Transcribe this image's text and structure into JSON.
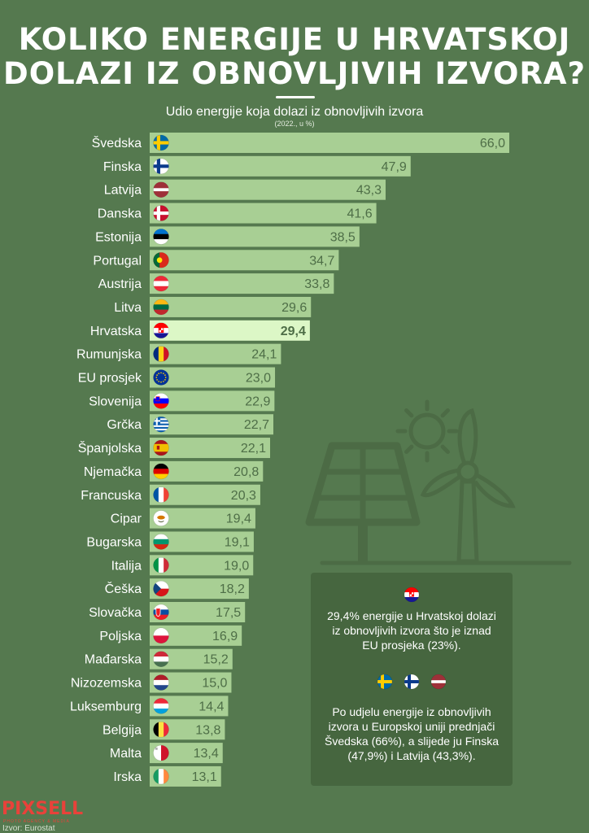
{
  "header": {
    "title_line1": "KOLIKO ENERGIJE U HRVATSKOJ",
    "title_line2": "DOLAZI IZ OBNOVLJIVIH IZVORA?",
    "subtitle": "Udio energije koja dolazi iz obnovljivih izvora",
    "subnote": "(2022., u %)"
  },
  "colors": {
    "background": "#55794f",
    "bar": "#a8cf94",
    "bar_highlight": "#dcf7c6",
    "value_text": "#4e6e47",
    "panel": "#46663f",
    "illustration": "#4c6b45",
    "logo": "#e8423a"
  },
  "chart_data": {
    "type": "bar",
    "orientation": "horizontal",
    "title": "Udio energije koja dolazi iz obnovljivih izvora",
    "subtitle": "(2022., u %)",
    "xlabel": "",
    "ylabel": "",
    "xlim": [
      0,
      66
    ],
    "grid": false,
    "highlight": "Hrvatska",
    "categories": [
      "Švedska",
      "Finska",
      "Latvija",
      "Danska",
      "Estonija",
      "Portugal",
      "Austrija",
      "Litva",
      "Hrvatska",
      "Rumunjska",
      "EU prosjek",
      "Slovenija",
      "Grčka",
      "Španjolska",
      "Njemačka",
      "Francuska",
      "Cipar",
      "Bugarska",
      "Italija",
      "Češka",
      "Slovačka",
      "Poljska",
      "Mađarska",
      "Nizozemska",
      "Luksemburg",
      "Belgija",
      "Malta",
      "Irska"
    ],
    "values": [
      66.0,
      47.9,
      43.3,
      41.6,
      38.5,
      34.7,
      33.8,
      29.6,
      29.4,
      24.1,
      23.0,
      22.9,
      22.7,
      22.1,
      20.8,
      20.3,
      19.4,
      19.1,
      19.0,
      18.2,
      17.5,
      16.9,
      15.2,
      15.0,
      14.4,
      13.8,
      13.4,
      13.1
    ],
    "value_labels": [
      "66,0",
      "47,9",
      "43,3",
      "41,6",
      "38,5",
      "34,7",
      "33,8",
      "29,6",
      "29,4",
      "24,1",
      "23,0",
      "22,9",
      "22,7",
      "22,1",
      "20,8",
      "20,3",
      "19,4",
      "19,1",
      "19,0",
      "18,2",
      "17,5",
      "16,9",
      "15,2",
      "15,0",
      "14,4",
      "13,8",
      "13,4",
      "13,1"
    ],
    "flags": [
      "flag-sweden",
      "flag-finland",
      "flag-latvia",
      "flag-denmark",
      "flag-estonia",
      "flag-portugal",
      "flag-austria",
      "flag-lithuania",
      "flag-croatia",
      "flag-romania",
      "flag-eu",
      "flag-slovenia",
      "flag-greece",
      "flag-spain",
      "flag-germany",
      "flag-france",
      "flag-cyprus",
      "flag-bulgaria",
      "flag-italy",
      "flag-czechia",
      "flag-slovakia",
      "flag-poland",
      "flag-hungary",
      "flag-netherlands",
      "flag-luxembourg",
      "flag-belgium",
      "flag-malta",
      "flag-ireland"
    ]
  },
  "info_panel": {
    "flag_top": "flag-croatia",
    "text1": "29,4% energije u Hrvatskoj dolazi iz obnovljivih izvora što je iznad EU prosjeka (23%).",
    "flags_bottom": [
      "flag-sweden",
      "flag-finland",
      "flag-latvia"
    ],
    "text2": "Po udjelu energije iz obnovljivih izvora u Europskoj uniji prednjači Švedska (66%), a slijede ju Finska (47,9%) i Latvija (43,3%)."
  },
  "footer": {
    "logo": "PIXSELL",
    "logo_tagline": "PHOTO AGENCY & MEDIA",
    "source": "Izvor: Eurostat"
  }
}
